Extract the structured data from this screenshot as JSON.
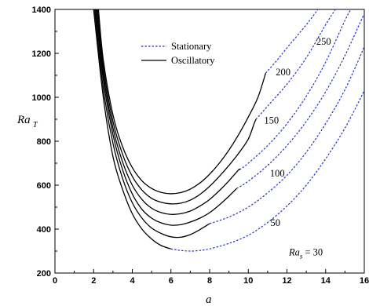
{
  "chart_data": {
    "type": "line",
    "xlabel": "a",
    "ylabel": "Ra",
    "ylabel_sub": "T",
    "xlim": [
      0,
      16
    ],
    "ylim": [
      200,
      1400
    ],
    "xticks": [
      "0",
      "2",
      "4",
      "6",
      "8",
      "10",
      "12",
      "14",
      "16"
    ],
    "yticks": [
      "200",
      "400",
      "600",
      "800",
      "1000",
      "1200",
      "1400"
    ],
    "grid": false,
    "legend_position": "top-left",
    "legend": [
      {
        "label": "Stationary",
        "style": "dotted",
        "color": "#2233cc"
      },
      {
        "label": "Oscillatory",
        "style": "solid",
        "color": "#000000"
      }
    ],
    "colors": {
      "stationary": "#2233cc",
      "oscillatory": "#000000",
      "axis": "#000000"
    },
    "curve_labels": [
      {
        "text": "250",
        "x": 13.9,
        "y": 1240
      },
      {
        "text": "200",
        "x": 11.8,
        "y": 1100
      },
      {
        "text": "150",
        "x": 11.2,
        "y": 880
      },
      {
        "text": "100",
        "x": 11.5,
        "y": 640
      },
      {
        "text": "50",
        "x": 11.4,
        "y": 415
      }
    ],
    "base_label": {
      "prefix": "Ra",
      "sub": "s",
      "suffix": " = 30",
      "x": 12.1,
      "y": 280
    },
    "series": [
      {
        "curve": "30",
        "oscillatory": [
          [
            2.0,
            1400
          ],
          [
            2.5,
            1000
          ],
          [
            3.0,
            730
          ],
          [
            3.5,
            580
          ],
          [
            4.0,
            470
          ],
          [
            4.5,
            400
          ],
          [
            5.0,
            355
          ],
          [
            5.5,
            325
          ],
          [
            6.0,
            310
          ]
        ],
        "stationary": [
          [
            6.0,
            310
          ],
          [
            6.5,
            303
          ],
          [
            7.0,
            300
          ],
          [
            7.5,
            303
          ],
          [
            8.0,
            310
          ],
          [
            9.0,
            335
          ],
          [
            10.0,
            372
          ],
          [
            11.0,
            430
          ],
          [
            12.0,
            505
          ],
          [
            13.0,
            600
          ],
          [
            14.0,
            720
          ],
          [
            15.0,
            860
          ],
          [
            16.0,
            1030
          ]
        ]
      },
      {
        "curve": "50",
        "oscillatory": [
          [
            2.05,
            1400
          ],
          [
            2.5,
            1040
          ],
          [
            3.0,
            790
          ],
          [
            3.5,
            630
          ],
          [
            4.0,
            520
          ],
          [
            4.5,
            450
          ],
          [
            5.0,
            405
          ],
          [
            5.5,
            380
          ],
          [
            6.0,
            365
          ],
          [
            6.5,
            363
          ],
          [
            7.0,
            375
          ],
          [
            7.5,
            398
          ],
          [
            8.0,
            425
          ]
        ],
        "stationary": [
          [
            8.0,
            425
          ],
          [
            9.0,
            455
          ],
          [
            10.0,
            500
          ],
          [
            11.0,
            565
          ],
          [
            12.0,
            645
          ],
          [
            13.0,
            750
          ],
          [
            14.0,
            880
          ],
          [
            15.0,
            1035
          ],
          [
            16.0,
            1230
          ],
          [
            16.2,
            1280
          ]
        ]
      },
      {
        "curve": "100",
        "oscillatory": [
          [
            2.1,
            1400
          ],
          [
            2.5,
            1080
          ],
          [
            3.0,
            830
          ],
          [
            3.5,
            670
          ],
          [
            4.0,
            560
          ],
          [
            4.5,
            490
          ],
          [
            5.0,
            450
          ],
          [
            5.5,
            428
          ],
          [
            6.0,
            418
          ],
          [
            6.5,
            420
          ],
          [
            7.0,
            432
          ],
          [
            7.5,
            450
          ],
          [
            8.0,
            475
          ],
          [
            8.5,
            510
          ],
          [
            9.0,
            550
          ],
          [
            9.4,
            585
          ]
        ],
        "stationary": [
          [
            9.4,
            585
          ],
          [
            10.0,
            618
          ],
          [
            11.0,
            690
          ],
          [
            12.0,
            780
          ],
          [
            13.0,
            890
          ],
          [
            14.0,
            1025
          ],
          [
            15.0,
            1190
          ],
          [
            16.0,
            1380
          ],
          [
            16.2,
            1400
          ]
        ]
      },
      {
        "curve": "150",
        "oscillatory": [
          [
            2.15,
            1400
          ],
          [
            2.5,
            1110
          ],
          [
            3.0,
            860
          ],
          [
            3.5,
            705
          ],
          [
            4.0,
            600
          ],
          [
            4.5,
            535
          ],
          [
            5.0,
            495
          ],
          [
            5.5,
            475
          ],
          [
            6.0,
            467
          ],
          [
            6.5,
            470
          ],
          [
            7.0,
            482
          ],
          [
            7.5,
            505
          ],
          [
            8.0,
            535
          ],
          [
            8.5,
            575
          ],
          [
            9.0,
            620
          ],
          [
            9.5,
            670
          ],
          [
            9.55,
            670
          ]
        ],
        "stationary": [
          [
            9.55,
            670
          ],
          [
            10.0,
            700
          ],
          [
            11.0,
            780
          ],
          [
            12.0,
            880
          ],
          [
            13.0,
            1005
          ],
          [
            14.0,
            1160
          ],
          [
            15.0,
            1350
          ],
          [
            15.3,
            1400
          ]
        ]
      },
      {
        "curve": "200",
        "oscillatory": [
          [
            2.2,
            1400
          ],
          [
            2.5,
            1140
          ],
          [
            3.0,
            890
          ],
          [
            3.5,
            740
          ],
          [
            4.0,
            640
          ],
          [
            4.5,
            578
          ],
          [
            5.0,
            540
          ],
          [
            5.5,
            522
          ],
          [
            6.0,
            515
          ],
          [
            6.5,
            518
          ],
          [
            7.0,
            532
          ],
          [
            7.5,
            558
          ],
          [
            8.0,
            595
          ],
          [
            8.5,
            640
          ],
          [
            9.0,
            690
          ],
          [
            9.5,
            745
          ],
          [
            10.0,
            810
          ],
          [
            10.3,
            880
          ],
          [
            10.4,
            900
          ]
        ],
        "stationary": [
          [
            10.4,
            900
          ],
          [
            11.0,
            960
          ],
          [
            12.0,
            1060
          ],
          [
            13.0,
            1180
          ],
          [
            14.0,
            1330
          ],
          [
            14.5,
            1400
          ]
        ]
      },
      {
        "curve": "250",
        "oscillatory": [
          [
            2.25,
            1400
          ],
          [
            2.5,
            1170
          ],
          [
            3.0,
            920
          ],
          [
            3.5,
            775
          ],
          [
            4.0,
            680
          ],
          [
            4.5,
            620
          ],
          [
            5.0,
            585
          ],
          [
            5.5,
            567
          ],
          [
            6.0,
            561
          ],
          [
            6.5,
            566
          ],
          [
            7.0,
            582
          ],
          [
            7.5,
            610
          ],
          [
            8.0,
            650
          ],
          [
            8.5,
            700
          ],
          [
            9.0,
            760
          ],
          [
            9.5,
            830
          ],
          [
            10.0,
            910
          ],
          [
            10.5,
            1000
          ],
          [
            10.9,
            1110
          ]
        ],
        "stationary": [
          [
            10.9,
            1110
          ],
          [
            11.5,
            1170
          ],
          [
            12.0,
            1225
          ],
          [
            13.0,
            1330
          ],
          [
            13.6,
            1400
          ]
        ]
      }
    ]
  }
}
